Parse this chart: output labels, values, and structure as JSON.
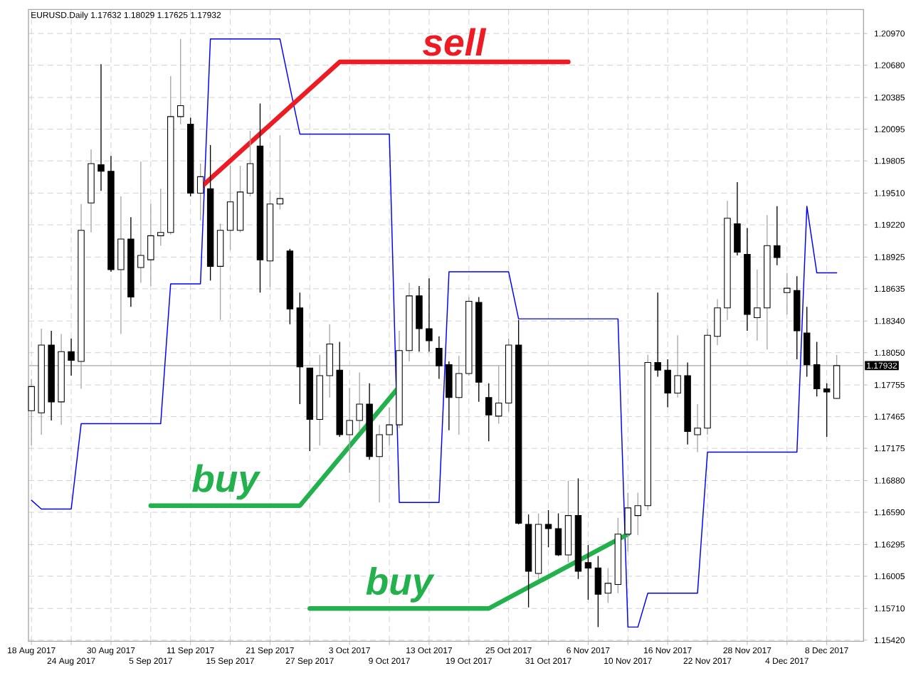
{
  "chart_data": {
    "type": "candlestick",
    "title": "EURUSD.Daily 1.17632 1.18029 1.17625 1.17932",
    "categories": [
      "18 Aug 2017",
      null,
      null,
      null,
      "24 Aug 2017",
      null,
      null,
      null,
      "30 Aug 2017",
      null,
      null,
      null,
      "5 Sep 2017",
      null,
      null,
      null,
      "11 Sep 2017",
      null,
      null,
      null,
      "15 Sep 2017",
      null,
      null,
      null,
      "21 Sep 2017",
      null,
      null,
      null,
      "27 Sep 2017",
      null,
      null,
      null,
      "3 Oct 2017",
      null,
      null,
      null,
      "9 Oct 2017",
      null,
      null,
      null,
      "13 Oct 2017",
      null,
      null,
      null,
      "19 Oct 2017",
      null,
      null,
      null,
      "25 Oct 2017",
      null,
      null,
      null,
      "31 Oct 2017",
      null,
      null,
      null,
      "6 Nov 2017",
      null,
      null,
      null,
      "10 Nov 2017",
      null,
      null,
      null,
      "16 Nov 2017",
      null,
      null,
      null,
      "22 Nov 2017",
      null,
      null,
      null,
      "28 Nov 2017",
      null,
      null,
      null,
      "4 Dec 2017",
      null,
      null,
      null,
      "8 Dec 2017",
      null
    ],
    "ohlc": [
      [
        1.1752,
        1.1781,
        1.172,
        1.1774
      ],
      [
        1.175,
        1.1827,
        1.173,
        1.1812
      ],
      [
        1.1812,
        1.1825,
        1.1743,
        1.176
      ],
      [
        1.176,
        1.1822,
        1.1739,
        1.1806
      ],
      [
        1.1806,
        1.1818,
        1.1784,
        1.1798
      ],
      [
        1.1797,
        1.1941,
        1.1772,
        1.1917
      ],
      [
        1.1942,
        1.1991,
        1.1915,
        1.1978
      ],
      [
        1.1977,
        1.2069,
        1.1953,
        1.1971
      ],
      [
        1.1971,
        1.1985,
        1.1879,
        1.1881
      ],
      [
        1.1881,
        1.1948,
        1.1822,
        1.1909
      ],
      [
        1.1909,
        1.1929,
        1.1847,
        1.1856
      ],
      [
        1.1883,
        1.198,
        1.1869,
        1.1894
      ],
      [
        1.189,
        1.1941,
        1.1866,
        1.1912
      ],
      [
        1.1912,
        1.1955,
        1.1903,
        1.1915
      ],
      [
        1.1915,
        1.2058,
        1.1913,
        1.2021
      ],
      [
        1.2021,
        1.2092,
        1.2014,
        1.2031
      ],
      [
        1.2014,
        1.202,
        1.1948,
        1.1951
      ],
      [
        1.1951,
        1.1978,
        1.1926,
        1.1966
      ],
      [
        1.1955,
        1.1995,
        1.1871,
        1.1884
      ],
      [
        1.1884,
        1.1923,
        1.1835,
        1.1917
      ],
      [
        1.1917,
        1.1976,
        1.1899,
        1.1943
      ],
      [
        1.1917,
        1.1976,
        1.1915,
        1.1952
      ],
      [
        1.1951,
        1.2008,
        1.1948,
        1.1978
      ],
      [
        1.1994,
        1.2033,
        1.186,
        1.189
      ],
      [
        1.1889,
        1.1953,
        1.1865,
        1.1941
      ],
      [
        1.1941,
        1.2004,
        1.1936,
        1.1946
      ],
      [
        1.1898,
        1.19,
        1.1831,
        1.1845
      ],
      [
        1.1846,
        1.186,
        1.1758,
        1.1792
      ],
      [
        1.1791,
        1.1791,
        1.1715,
        1.1744
      ],
      [
        1.1744,
        1.1803,
        1.172,
        1.1784
      ],
      [
        1.1784,
        1.1831,
        1.1764,
        1.1813
      ],
      [
        1.1789,
        1.1815,
        1.1728,
        1.173
      ],
      [
        1.173,
        1.1773,
        1.1695,
        1.1743
      ],
      [
        1.1743,
        1.1787,
        1.1733,
        1.1758
      ],
      [
        1.1758,
        1.1777,
        1.1707,
        1.171
      ],
      [
        1.171,
        1.1739,
        1.1668,
        1.173
      ],
      [
        1.173,
        1.1755,
        1.172,
        1.1739
      ],
      [
        1.1739,
        1.1825,
        1.1736,
        1.1807
      ],
      [
        1.1807,
        1.1869,
        1.1797,
        1.1857
      ],
      [
        1.1857,
        1.1866,
        1.1806,
        1.1827
      ],
      [
        1.1827,
        1.1873,
        1.1806,
        1.1816
      ],
      [
        1.1809,
        1.182,
        1.1781,
        1.1793
      ],
      [
        1.1794,
        1.1797,
        1.1734,
        1.1764
      ],
      [
        1.1764,
        1.1802,
        1.173,
        1.1786
      ],
      [
        1.1786,
        1.1856,
        1.1784,
        1.1852
      ],
      [
        1.1851,
        1.1856,
        1.176,
        1.1778
      ],
      [
        1.1764,
        1.1777,
        1.1724,
        1.1748
      ],
      [
        1.1747,
        1.1793,
        1.174,
        1.1759
      ],
      [
        1.1759,
        1.1818,
        1.1751,
        1.1812
      ],
      [
        1.1812,
        1.1835,
        1.1648,
        1.1649
      ],
      [
        1.1648,
        1.1657,
        1.1572,
        1.1605
      ],
      [
        1.1603,
        1.1658,
        1.1598,
        1.1648
      ],
      [
        1.1648,
        1.1661,
        1.1627,
        1.1644
      ],
      [
        1.1644,
        1.1658,
        1.1619,
        1.162
      ],
      [
        1.162,
        1.1688,
        1.1613,
        1.1656
      ],
      [
        1.1656,
        1.169,
        1.1598,
        1.1605
      ],
      [
        1.1613,
        1.1629,
        1.1579,
        1.1608
      ],
      [
        1.1608,
        1.1619,
        1.1554,
        1.1584
      ],
      [
        1.1585,
        1.1608,
        1.1576,
        1.1594
      ],
      [
        1.1593,
        1.1654,
        1.1585,
        1.1639
      ],
      [
        1.1639,
        1.1677,
        1.1623,
        1.1663
      ],
      [
        1.1656,
        1.1677,
        1.1638,
        1.1665
      ],
      [
        1.1665,
        1.1803,
        1.1661,
        1.1796
      ],
      [
        1.1796,
        1.186,
        1.1783,
        1.1789
      ],
      [
        1.1789,
        1.1799,
        1.1755,
        1.1768
      ],
      [
        1.1768,
        1.1821,
        1.1764,
        1.1784
      ],
      [
        1.1784,
        1.1796,
        1.1721,
        1.1733
      ],
      [
        1.173,
        1.1758,
        1.1714,
        1.1736
      ],
      [
        1.1736,
        1.1827,
        1.173,
        1.1821
      ],
      [
        1.182,
        1.1854,
        1.1812,
        1.1846
      ],
      [
        1.1846,
        1.1944,
        1.1835,
        1.1928
      ],
      [
        1.1923,
        1.1961,
        1.1894,
        1.1897
      ],
      [
        1.1895,
        1.1919,
        1.1825,
        1.184
      ],
      [
        1.1837,
        1.1881,
        1.1816,
        1.1846
      ],
      [
        1.1846,
        1.1931,
        1.1808,
        1.1903
      ],
      [
        1.1903,
        1.1939,
        1.1885,
        1.1892
      ],
      [
        1.186,
        1.1878,
        1.184,
        1.1864
      ],
      [
        1.1862,
        1.1875,
        1.1799,
        1.1825
      ],
      [
        1.1823,
        1.1847,
        1.1783,
        1.1794
      ],
      [
        1.1794,
        1.1815,
        1.1765,
        1.1772
      ],
      [
        1.1772,
        1.1777,
        1.1728,
        1.1769
      ],
      [
        1.17632,
        1.18029,
        1.17625,
        1.17932
      ]
    ],
    "series": [
      {
        "type": "line",
        "color": "#0000ff",
        "values": [
          1.167,
          1.1662,
          1.1662,
          1.1662,
          1.1662,
          1.174,
          1.174,
          1.174,
          1.174,
          1.174,
          1.174,
          1.174,
          1.174,
          1.174,
          1.1868,
          1.1868,
          1.1868,
          1.1868,
          1.2092,
          1.2092,
          1.2092,
          1.2092,
          1.2092,
          1.2092,
          1.2092,
          1.2092,
          1.2048,
          1.2005,
          1.2005,
          1.2005,
          1.2005,
          1.2005,
          1.2005,
          1.2005,
          1.2005,
          1.2005,
          1.2005,
          1.1668,
          1.1668,
          1.1668,
          1.1668,
          1.1668,
          1.1879,
          1.1879,
          1.1879,
          1.1879,
          1.1879,
          1.1879,
          1.1879,
          1.1836,
          1.1836,
          1.1836,
          1.1836,
          1.1836,
          1.1836,
          1.1836,
          1.1836,
          1.1836,
          1.1836,
          1.1836,
          1.1554,
          1.1554,
          1.1585,
          1.1585,
          1.1585,
          1.1585,
          1.1585,
          1.1585,
          1.1714,
          1.1714,
          1.1714,
          1.1714,
          1.1714,
          1.1714,
          1.1714,
          1.1714,
          1.1714,
          1.1714,
          1.1939,
          1.1878,
          1.1878,
          1.1878
        ]
      },
      {
        "type": "line",
        "name": "sell",
        "color": "#ed1c24",
        "values": [
          null,
          null,
          null,
          null,
          null,
          null,
          null,
          null,
          null,
          null,
          null,
          null,
          null,
          null,
          null,
          null,
          null,
          1.1956,
          null,
          null,
          null,
          null,
          null,
          null,
          null,
          null,
          null,
          null,
          null,
          null,
          null,
          1.2071,
          null,
          null,
          null,
          null,
          null,
          null,
          null,
          null,
          null,
          null,
          null,
          null,
          null,
          null,
          null,
          null,
          null,
          null,
          null,
          null,
          null,
          null,
          1.2071,
          null,
          null,
          null,
          null,
          null,
          null,
          null,
          null,
          null,
          null,
          null,
          null,
          null,
          null,
          null,
          null,
          null,
          null,
          null,
          null,
          null,
          null,
          null,
          null,
          null,
          null,
          null
        ]
      },
      {
        "type": "line",
        "name": "buy",
        "color": "#22b14c",
        "values": [
          null,
          null,
          null,
          null,
          null,
          null,
          null,
          null,
          null,
          null,
          null,
          null,
          1.1665,
          null,
          null,
          null,
          null,
          null,
          null,
          null,
          null,
          null,
          null,
          null,
          null,
          null,
          null,
          1.1665,
          null,
          null,
          null,
          null,
          null,
          null,
          null,
          null,
          null,
          1.1774,
          null,
          null,
          null,
          null,
          null,
          null,
          null,
          null,
          null,
          null,
          null,
          null,
          null,
          null,
          null,
          null,
          null,
          null,
          null,
          null,
          null,
          null,
          null,
          null,
          null,
          null,
          null,
          null,
          null,
          null,
          null,
          null,
          null,
          null,
          null,
          null,
          null,
          null,
          null,
          null,
          null,
          null,
          null,
          null
        ]
      },
      {
        "type": "line",
        "name": "buy",
        "color": "#22b14c",
        "values": [
          null,
          null,
          null,
          null,
          null,
          null,
          null,
          null,
          null,
          null,
          null,
          null,
          null,
          null,
          null,
          null,
          null,
          null,
          null,
          null,
          null,
          null,
          null,
          null,
          null,
          null,
          null,
          null,
          1.1571,
          null,
          null,
          null,
          null,
          null,
          null,
          null,
          null,
          null,
          null,
          null,
          null,
          null,
          null,
          null,
          null,
          null,
          1.1571,
          null,
          null,
          null,
          null,
          null,
          null,
          null,
          null,
          null,
          null,
          null,
          null,
          null,
          1.1639,
          null,
          null,
          null,
          null,
          null,
          null,
          null,
          null,
          null,
          null,
          null,
          null,
          null,
          null,
          null,
          null,
          null,
          null,
          null,
          null,
          null
        ]
      }
    ],
    "ylim": [
      1.1541,
      1.2119
    ],
    "yticks": [
      {
        "value": 1.2097,
        "label": "1.20970"
      },
      {
        "value": 1.2068,
        "label": "1.20680"
      },
      {
        "value": 1.20385,
        "label": "1.20385"
      },
      {
        "value": 1.20095,
        "label": "1.20095"
      },
      {
        "value": 1.19805,
        "label": "1.19805"
      },
      {
        "value": 1.1951,
        "label": "1.19510"
      },
      {
        "value": 1.1922,
        "label": "1.19220"
      },
      {
        "value": 1.18925,
        "label": "1.18925"
      },
      {
        "value": 1.18635,
        "label": "1.18635"
      },
      {
        "value": 1.1834,
        "label": "1.18340"
      },
      {
        "value": 1.1805,
        "label": "1.18050"
      },
      {
        "value": 1.17755,
        "label": "1.17755"
      },
      {
        "value": 1.17465,
        "label": "1.17465"
      },
      {
        "value": 1.17175,
        "label": "1.17175"
      },
      {
        "value": 1.1688,
        "label": "1.16880"
      },
      {
        "value": 1.1659,
        "label": "1.16590"
      },
      {
        "value": 1.16295,
        "label": "1.16295"
      },
      {
        "value": 1.16005,
        "label": "1.16005"
      },
      {
        "value": 1.1571,
        "label": "1.15710"
      },
      {
        "value": 1.1542,
        "label": "1.15420"
      }
    ],
    "ref_lines": [
      {
        "axis": "y",
        "value": 1.17932,
        "label": "1.17932",
        "color": "#c0c0c0"
      }
    ],
    "grid": true
  }
}
